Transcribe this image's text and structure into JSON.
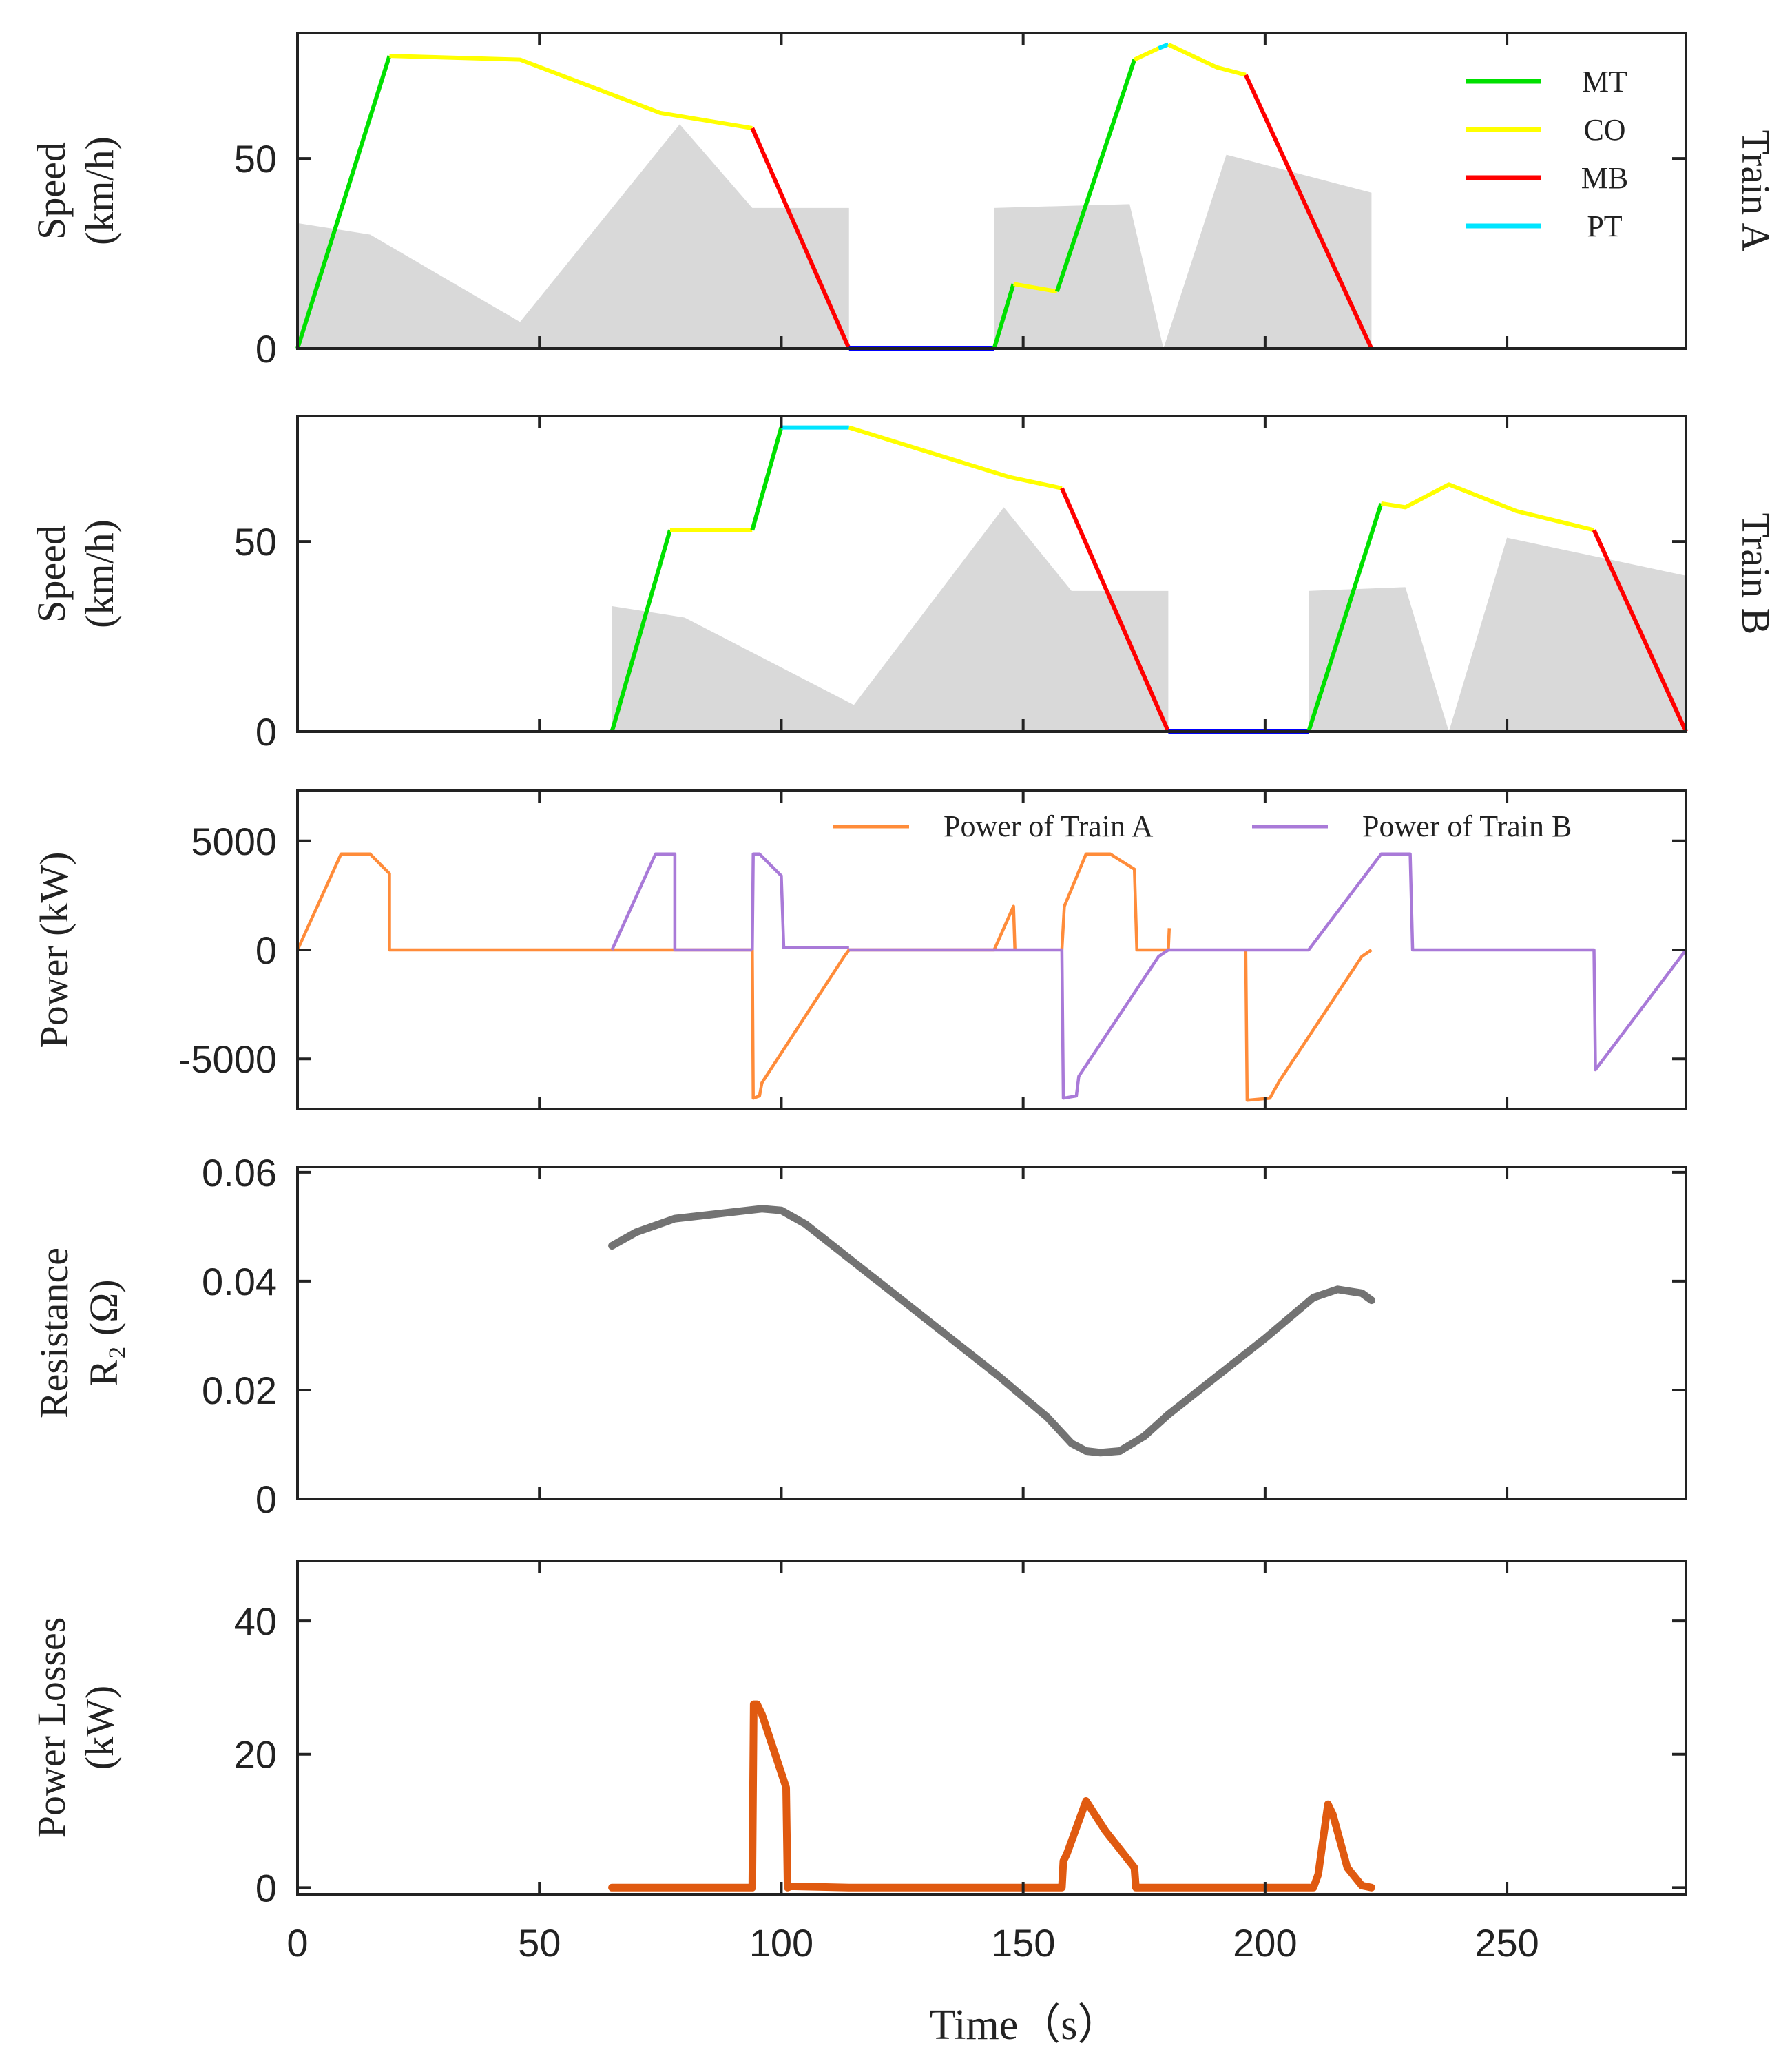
{
  "chart_data": [
    {
      "id": "trainA",
      "type": "line",
      "ylabel_lines": [
        "Speed",
        "(km/h)"
      ],
      "right_label": "Train A",
      "xlim": [
        0,
        287
      ],
      "ylim": [
        0,
        83
      ],
      "yticks": [
        0,
        50
      ],
      "legend": {
        "position": "top-right",
        "entries": [
          {
            "name": "MT",
            "color": "#00e000"
          },
          {
            "name": "CO",
            "color": "#ffff00"
          },
          {
            "name": "MB",
            "color": "#ff0000"
          },
          {
            "name": "PT",
            "color": "#00e5ff"
          }
        ]
      },
      "background_area": [
        {
          "x": [
            0,
            15,
            46,
            79,
            94,
            114
          ],
          "y": [
            33,
            30,
            7,
            59,
            37,
            37
          ]
        },
        {
          "x": [
            144,
            172,
            179,
            192,
            222
          ],
          "y": [
            37,
            38,
            0,
            51,
            41
          ]
        }
      ],
      "series": [
        {
          "x": [
            0,
            19
          ],
          "y": [
            0,
            77
          ],
          "color": "#00e000"
        },
        {
          "x": [
            19,
            46,
            75,
            94
          ],
          "y": [
            77,
            76,
            62,
            58
          ],
          "color": "#ffff00"
        },
        {
          "x": [
            94,
            114
          ],
          "y": [
            58,
            0
          ],
          "color": "#ff0000"
        },
        {
          "x": [
            114,
            144
          ],
          "y": [
            0,
            0
          ],
          "color": "#0000ff"
        },
        {
          "x": [
            144,
            148
          ],
          "y": [
            0,
            17
          ],
          "color": "#00e000"
        },
        {
          "x": [
            148,
            157
          ],
          "y": [
            17,
            15
          ],
          "color": "#ffff00"
        },
        {
          "x": [
            157,
            173
          ],
          "y": [
            15,
            76
          ],
          "color": "#00e000"
        },
        {
          "x": [
            173,
            178
          ],
          "y": [
            76,
            79
          ],
          "color": "#ffff00"
        },
        {
          "x": [
            178,
            180
          ],
          "y": [
            79,
            80
          ],
          "color": "#00e5ff"
        },
        {
          "x": [
            180,
            190,
            196
          ],
          "y": [
            80,
            74,
            72
          ],
          "color": "#ffff00"
        },
        {
          "x": [
            196,
            222
          ],
          "y": [
            72,
            0
          ],
          "color": "#ff0000"
        }
      ]
    },
    {
      "id": "trainB",
      "type": "line",
      "ylabel_lines": [
        "Speed",
        "(km/h)"
      ],
      "right_label": "Train B",
      "xlim": [
        0,
        287
      ],
      "ylim": [
        0,
        83
      ],
      "yticks": [
        0,
        50
      ],
      "background_area": [
        {
          "x": [
            65,
            80,
            115,
            146,
            160,
            180
          ],
          "y": [
            33,
            30,
            7,
            59,
            37,
            37
          ]
        },
        {
          "x": [
            209,
            229,
            238,
            250,
            287
          ],
          "y": [
            37,
            38,
            0,
            51,
            41
          ]
        }
      ],
      "series": [
        {
          "x": [
            65,
            77
          ],
          "y": [
            0,
            53
          ],
          "color": "#00e000"
        },
        {
          "x": [
            77,
            94
          ],
          "y": [
            53,
            53
          ],
          "color": "#ffff00"
        },
        {
          "x": [
            94,
            100
          ],
          "y": [
            53,
            80
          ],
          "color": "#00e000"
        },
        {
          "x": [
            100,
            114
          ],
          "y": [
            80,
            80
          ],
          "color": "#00e5ff"
        },
        {
          "x": [
            114,
            147,
            158
          ],
          "y": [
            80,
            67,
            64
          ],
          "color": "#ffff00"
        },
        {
          "x": [
            158,
            180
          ],
          "y": [
            64,
            0
          ],
          "color": "#ff0000"
        },
        {
          "x": [
            180,
            209
          ],
          "y": [
            0,
            0
          ],
          "color": "#0000ff"
        },
        {
          "x": [
            209,
            224
          ],
          "y": [
            0,
            60
          ],
          "color": "#00e000"
        },
        {
          "x": [
            224,
            229,
            238,
            252,
            268
          ],
          "y": [
            60,
            59,
            65,
            58,
            53
          ],
          "color": "#ffff00"
        },
        {
          "x": [
            268,
            287
          ],
          "y": [
            53,
            0
          ],
          "color": "#ff0000"
        }
      ]
    },
    {
      "id": "power",
      "type": "line",
      "ylabel_lines": [
        "Power (kW)"
      ],
      "xlim": [
        0,
        287
      ],
      "ylim": [
        -7300,
        7300
      ],
      "yticks": [
        -5000,
        0,
        5000
      ],
      "legend": {
        "position": "top",
        "entries": [
          {
            "name": "Power of Train A",
            "color": "#ff8c3a"
          },
          {
            "name": "Power of Train B",
            "color": "#a97ad8"
          }
        ]
      },
      "series": [
        {
          "name": "Power of Train A",
          "color": "#ff8c3a",
          "segments": [
            {
              "x": [
                0,
                9,
                15,
                19,
                19,
                94
              ],
              "y": [
                0,
                4400,
                4400,
                3500,
                0,
                0
              ]
            },
            {
              "x": [
                94,
                94.2,
                95.5,
                96,
                113,
                114,
                118
              ],
              "y": [
                0,
                -6800,
                -6700,
                -6100,
                -300,
                0,
                0
              ]
            },
            {
              "x": [
                118,
                144,
                148,
                148.3
              ],
              "y": [
                0,
                0,
                2000,
                0
              ]
            },
            {
              "x": [
                158,
                158.5,
                163,
                168,
                173,
                173.5,
                180,
                180.2
              ],
              "y": [
                0,
                2000,
                4400,
                4400,
                3700,
                0,
                0,
                1000
              ]
            },
            {
              "x": [
                196,
                196.3,
                201,
                203,
                220,
                222
              ],
              "y": [
                0,
                -6900,
                -6800,
                -6000,
                -300,
                0
              ]
            }
          ]
        },
        {
          "name": "Power of Train B",
          "color": "#a97ad8",
          "segments": [
            {
              "x": [
                65,
                74,
                78,
                78,
                94
              ],
              "y": [
                0,
                4400,
                4400,
                0,
                0
              ]
            },
            {
              "x": [
                94,
                94.2,
                95.5,
                100,
                100.5,
                114
              ],
              "y": [
                0,
                4400,
                4400,
                3400,
                100,
                100
              ]
            },
            {
              "x": [
                114,
                158,
                158.3,
                161,
                161.5,
                178,
                180,
                209,
                224,
                230,
                230.5,
                268,
                268.3,
                287
              ],
              "y": [
                0,
                0,
                -6800,
                -6700,
                -5800,
                -300,
                0,
                0,
                4400,
                4400,
                0,
                0,
                -5500,
                0
              ]
            }
          ]
        }
      ]
    },
    {
      "id": "resistance",
      "type": "line",
      "ylabel_lines": [
        "Resistance",
        "R₂ (Ω)"
      ],
      "xlim": [
        0,
        287
      ],
      "ylim": [
        0,
        0.061
      ],
      "yticks": [
        0,
        0.02,
        0.04,
        0.06
      ],
      "ytick_labels": [
        "0",
        "0.02",
        "0.04",
        "0.06"
      ],
      "series": [
        {
          "name": "R2",
          "color": "#737373",
          "x": [
            65,
            70,
            78,
            88,
            96,
            100,
            105,
            115,
            130,
            145,
            155,
            160,
            163,
            166,
            170,
            175,
            180,
            190,
            200,
            210,
            215,
            220,
            222
          ],
          "y": [
            0.0465,
            0.049,
            0.0515,
            0.0525,
            0.0533,
            0.053,
            0.0505,
            0.0435,
            0.033,
            0.0225,
            0.015,
            0.0102,
            0.0088,
            0.0085,
            0.0088,
            0.0115,
            0.0155,
            0.0225,
            0.0295,
            0.037,
            0.0385,
            0.0378,
            0.0365
          ]
        }
      ]
    },
    {
      "id": "losses",
      "type": "line",
      "ylabel_lines": [
        "Power  Losses",
        "(kW)"
      ],
      "xlabel": "Time（s）",
      "xlim": [
        0,
        287
      ],
      "ylim": [
        -1,
        49
      ],
      "yticks": [
        0,
        20,
        40
      ],
      "xticks": [
        0,
        50,
        100,
        150,
        200,
        250
      ],
      "series": [
        {
          "name": "Power Losses",
          "color": "#e05a10",
          "x": [
            65,
            94,
            94.3,
            95,
            96,
            101,
            101.3,
            102,
            114,
            158,
            158.3,
            159,
            163,
            167,
            173,
            173.3,
            174,
            210,
            211,
            213,
            214,
            217,
            220,
            222
          ],
          "y": [
            0,
            0,
            27.5,
            27.5,
            26,
            15,
            0,
            0.2,
            0,
            0,
            4,
            5,
            13,
            8.5,
            3,
            0,
            0,
            0,
            2,
            12.5,
            11,
            3,
            0.3,
            0
          ]
        }
      ]
    }
  ]
}
